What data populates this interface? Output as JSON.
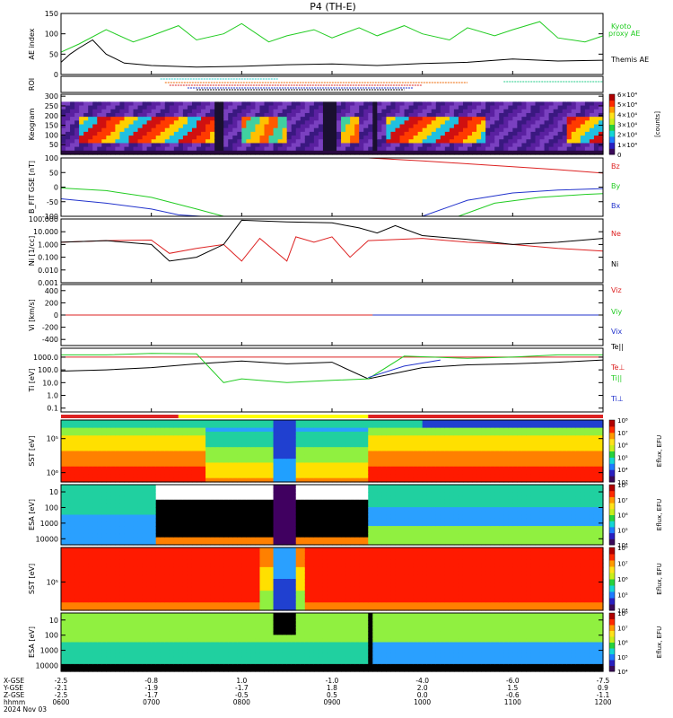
{
  "title": "P4 (TH-E)",
  "footer": {
    "rows": [
      "X-GSE",
      "Y-GSE",
      "Z-GSE",
      "hhmm",
      "2024 Nov 03"
    ],
    "columns": [
      {
        "x": [
          "-2.5",
          "-2.1",
          "-2.5"
        ],
        "t": "0600"
      },
      {
        "x": [
          "-0.8",
          "-1.9",
          "-1.7"
        ],
        "t": "0700"
      },
      {
        "x": [
          "1.0",
          "-1.7",
          "-0.5"
        ],
        "t": "0800"
      },
      {
        "x": [
          "-1.0",
          "1.8",
          "0.5"
        ],
        "t": "0900"
      },
      {
        "x": [
          "-4.0",
          "2.0",
          "0.0"
        ],
        "t": "1000"
      },
      {
        "x": [
          "-6.0",
          "1.5",
          "-0.6"
        ],
        "t": "1100"
      },
      {
        "x": [
          "-7.5",
          "0.9",
          "-1.1"
        ],
        "t": "1200"
      }
    ]
  },
  "chart_data": [
    {
      "type": "line",
      "id": "ae",
      "ylabel": "AE index",
      "ylim": [
        0,
        150
      ],
      "yticks": [
        "0",
        "50",
        "100",
        "150"
      ],
      "series": [
        {
          "name": "Kyoto proxy AE",
          "color": "#22cc22",
          "x": [
            6.0,
            6.2,
            6.5,
            6.8,
            7.0,
            7.3,
            7.5,
            7.8,
            8.0,
            8.3,
            8.5,
            8.8,
            9.0,
            9.3,
            9.5,
            9.8,
            10.0,
            10.3,
            10.5,
            10.8,
            11.0,
            11.3,
            11.5,
            11.8,
            12.0
          ],
          "values": [
            55,
            75,
            110,
            80,
            95,
            120,
            85,
            100,
            125,
            80,
            95,
            110,
            90,
            115,
            95,
            120,
            100,
            85,
            115,
            95,
            110,
            130,
            90,
            80,
            95
          ]
        },
        {
          "name": "Themis AE",
          "color": "#000000",
          "x": [
            6.0,
            6.1,
            6.2,
            6.35,
            6.5,
            6.7,
            7.0,
            7.5,
            8.0,
            8.5,
            9.0,
            9.5,
            10.0,
            10.5,
            11.0,
            11.5,
            12.0
          ],
          "values": [
            30,
            50,
            65,
            85,
            50,
            28,
            22,
            18,
            20,
            24,
            26,
            22,
            27,
            30,
            38,
            33,
            35
          ]
        }
      ]
    },
    {
      "type": "table",
      "id": "roi",
      "ylabel": "ROI"
    },
    {
      "type": "heatmap",
      "id": "keogram",
      "ylabel": "Keogram",
      "ylim": [
        0,
        300
      ],
      "yticks": [
        "50",
        "100",
        "150",
        "200",
        "250",
        "300"
      ],
      "colorbar": {
        "label": "[counts]",
        "ticks": [
          "0",
          "1×10⁴",
          "2×10⁴",
          "3×10⁴",
          "4×10⁴",
          "5×10⁴",
          "6×10⁴"
        ]
      }
    },
    {
      "type": "line",
      "id": "bfield",
      "ylabel": "B_FIT GSE [nT]",
      "ylim": [
        -100,
        100
      ],
      "yticks": [
        "-100",
        "-50",
        "0",
        "50",
        "100"
      ],
      "series": [
        {
          "name": "Bz",
          "color": "#dd2222",
          "x": [
            9.4,
            10.0,
            10.5,
            11.0,
            11.5,
            12.0
          ],
          "values": [
            100,
            90,
            80,
            70,
            60,
            48
          ]
        },
        {
          "name": "By",
          "color": "#22cc22",
          "x": [
            6.0,
            6.5,
            7.0,
            7.5,
            7.8,
            10.4,
            10.8,
            11.3,
            11.8,
            12.0
          ],
          "values": [
            -3,
            -12,
            -35,
            -75,
            -100,
            -100,
            -55,
            -35,
            -25,
            -22
          ]
        },
        {
          "name": "Bx",
          "color": "#2233cc",
          "x": [
            6.0,
            6.5,
            7.0,
            7.3,
            7.55,
            10.0,
            10.5,
            11.0,
            11.5,
            12.0
          ],
          "values": [
            -40,
            -55,
            -75,
            -95,
            -100,
            -100,
            -45,
            -20,
            -10,
            -5
          ]
        }
      ]
    },
    {
      "type": "line",
      "id": "density",
      "ylabel": "Ni [1/cc]",
      "ylim": [
        0.001,
        100
      ],
      "log": true,
      "yticks": [
        "0.001",
        "0.010",
        "0.100",
        "1.000",
        "10.000",
        "100.000"
      ],
      "series": [
        {
          "name": "Ne",
          "color": "#dd2222",
          "x": [
            6.0,
            6.5,
            7.0,
            7.2,
            7.5,
            7.8,
            8.0,
            8.2,
            8.5,
            8.6,
            8.8,
            9.0,
            9.2,
            9.4,
            10.0,
            10.5,
            11.0,
            11.5,
            12.0
          ],
          "values": [
            1.5,
            2.0,
            2.2,
            0.2,
            0.5,
            1.0,
            0.05,
            3,
            0.05,
            4,
            1.5,
            4,
            0.1,
            2,
            3,
            1.5,
            1.0,
            0.5,
            0.3
          ]
        },
        {
          "name": "Ni",
          "color": "#000000",
          "x": [
            6.0,
            6.5,
            7.0,
            7.2,
            7.5,
            7.8,
            8.0,
            8.5,
            9.0,
            9.3,
            9.5,
            9.7,
            10.0,
            10.5,
            11.0,
            11.5,
            12.0
          ],
          "values": [
            1.5,
            2.0,
            1.0,
            0.05,
            0.1,
            1.0,
            80,
            60,
            50,
            20,
            8,
            30,
            5,
            2.5,
            1.0,
            1.5,
            3.0
          ]
        }
      ]
    },
    {
      "type": "line",
      "id": "velocity",
      "ylabel": "Vi [km/s]",
      "ylim": [
        -500,
        500
      ],
      "yticks": [
        "-400",
        "-200",
        "0",
        "200",
        "400"
      ],
      "series": [
        {
          "name": "Viz",
          "color": "#dd2222",
          "x": [
            6.0,
            7.05,
            9.45,
            12.0
          ],
          "values": [
            0,
            0,
            0,
            0
          ]
        },
        {
          "name": "Viy",
          "color": "#22cc22",
          "x": [
            9.45,
            12.0
          ],
          "values": [
            0,
            0
          ]
        },
        {
          "name": "Vix",
          "color": "#2233cc",
          "x": [
            9.45,
            12.0
          ],
          "values": [
            0,
            0
          ]
        }
      ]
    },
    {
      "type": "line",
      "id": "temperature",
      "ylabel": "Ti [eV]",
      "ylim": [
        0.05,
        5000
      ],
      "log": true,
      "yticks": [
        "0.1",
        "1.0",
        "10.0",
        "100.0",
        "1000.0"
      ],
      "series": [
        {
          "name": "Te||",
          "color": "#000000",
          "x": [
            6.0,
            6.5,
            7.0,
            7.5,
            8.0,
            8.5,
            9.0,
            9.4,
            10.0,
            10.5,
            11.0,
            11.5,
            12.0
          ],
          "values": [
            80,
            100,
            150,
            300,
            500,
            300,
            400,
            20,
            150,
            250,
            300,
            400,
            600
          ]
        },
        {
          "name": "Te⊥",
          "color": "#dd2222",
          "x": [
            6.0,
            12.0
          ],
          "values": [
            1000,
            1000
          ]
        },
        {
          "name": "Ti||",
          "color": "#22cc22",
          "x": [
            6.0,
            6.5,
            7.0,
            7.5,
            7.8,
            8.0,
            8.5,
            9.0,
            9.4,
            9.8,
            10.5,
            11.0,
            11.5,
            12.0
          ],
          "values": [
            1500,
            1500,
            2000,
            1800,
            10,
            20,
            10,
            15,
            20,
            1200,
            800,
            1000,
            1500,
            1500
          ]
        },
        {
          "name": "Ti⊥",
          "color": "#2233cc",
          "x": [
            9.4,
            9.8,
            10.2
          ],
          "values": [
            25,
            200,
            600
          ]
        }
      ]
    },
    {
      "type": "heatmap",
      "id": "sst_ion",
      "ylabel": "SST [eV]",
      "yticks": [
        "10⁵",
        "10⁶"
      ],
      "colorbar": {
        "label": "Eflux, EFU",
        "ticks": [
          "10³",
          "10⁴",
          "10⁵",
          "10⁶",
          "10⁷",
          "10⁸"
        ]
      }
    },
    {
      "type": "heatmap",
      "id": "esa_ion",
      "ylabel": "ESA [eV]",
      "yticks": [
        "10",
        "100",
        "1000",
        "10000"
      ],
      "colorbar": {
        "label": "Eflux, EFU",
        "ticks": [
          "10⁴",
          "10⁵",
          "10⁶",
          "10⁷",
          "10⁸"
        ]
      }
    },
    {
      "type": "heatmap",
      "id": "sst_elec",
      "ylabel": "SST [eV]",
      "yticks": [
        "10⁵"
      ],
      "colorbar": {
        "label": "Eflux, EFU",
        "ticks": [
          "10⁴",
          "10⁵",
          "10⁶",
          "10⁷",
          "10⁸"
        ]
      }
    },
    {
      "type": "heatmap",
      "id": "esa_elec",
      "ylabel": "ESA [eV]",
      "yticks": [
        "10",
        "100",
        "1000",
        "10000"
      ],
      "colorbar": {
        "label": "Eflux, EFU",
        "ticks": [
          "10⁴",
          "10⁵",
          "10⁶",
          "10⁷",
          "10⁸"
        ]
      }
    }
  ],
  "mode_bar": {
    "colors": [
      "#dd2222",
      "#ffff00",
      "#dd2222"
    ],
    "segments": [
      [
        6.0,
        7.3
      ],
      [
        7.3,
        9.4
      ],
      [
        9.4,
        12.0
      ]
    ]
  },
  "colors": {
    "red": "#dd2222",
    "green": "#22cc22",
    "blue": "#2233cc"
  }
}
